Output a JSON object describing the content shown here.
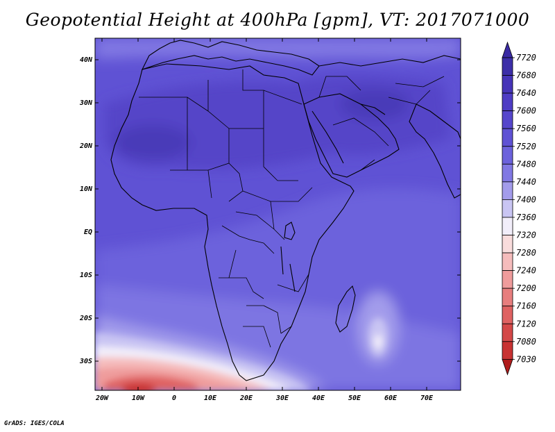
{
  "title": "Geopotential Height at 400hPa [gpm], VT: 2017071000",
  "credit": "GrADS: IGES/COLA",
  "map": {
    "lat_labels": [
      "40N",
      "30N",
      "20N",
      "10N",
      "EQ",
      "10S",
      "20S",
      "30S"
    ],
    "lon_labels": [
      "20W",
      "10W",
      "0",
      "10E",
      "20E",
      "30E",
      "40E",
      "50E",
      "60E",
      "70E"
    ],
    "lon_range": [
      -21,
      80
    ],
    "lat_range": [
      -37,
      45
    ]
  },
  "colorbar": {
    "levels": [
      "7720",
      "7680",
      "7640",
      "7600",
      "7560",
      "7520",
      "7480",
      "7440",
      "7400",
      "7360",
      "7320",
      "7280",
      "7240",
      "7200",
      "7160",
      "7120",
      "7080",
      "7030"
    ],
    "colors": [
      "#3c2ea8",
      "#4634b8",
      "#4e3cc4",
      "#5646cc",
      "#5f52d4",
      "#6c62dc",
      "#8178e3",
      "#a39ceb",
      "#c9c5f3",
      "#f2eefa",
      "#f9dcdc",
      "#f5bcbc",
      "#ef9c9c",
      "#e77e7e",
      "#df6262",
      "#d44848",
      "#c83232",
      "#b92222"
    ],
    "colors_end": {
      "top": "#3a2aa4",
      "bottom": "#b01c1c"
    }
  }
}
